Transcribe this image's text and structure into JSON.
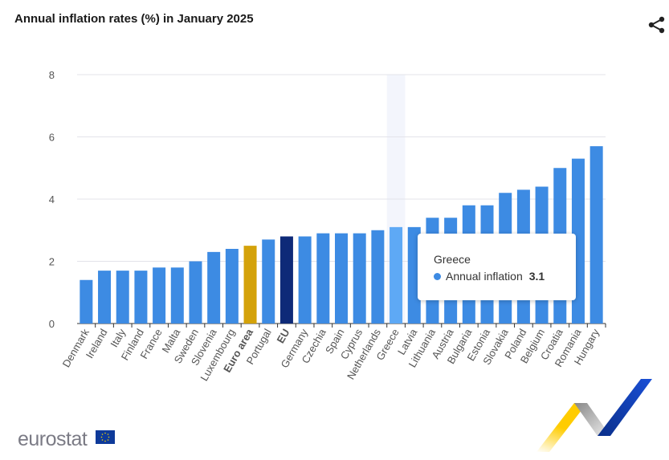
{
  "header": {
    "title": "Annual inflation rates (%) in January 2025",
    "share_icon": "share-icon"
  },
  "chart_data": {
    "type": "bar",
    "title": "Annual inflation rates (%) in January 2025",
    "xlabel": "",
    "ylabel": "",
    "ylim": [
      0,
      8
    ],
    "yticks": [
      0,
      2,
      4,
      6,
      8
    ],
    "grid": true,
    "categories": [
      "Denmark",
      "Ireland",
      "Italy",
      "Finland",
      "France",
      "Malta",
      "Sweden",
      "Slovenia",
      "Luxembourg",
      "Euro area",
      "Portugal",
      "EU",
      "Germany",
      "Czechia",
      "Spain",
      "Cyprus",
      "Netherlands",
      "Greece",
      "Latvia",
      "Lithuania",
      "Austria",
      "Bulgaria",
      "Estonia",
      "Slovakia",
      "Poland",
      "Belgium",
      "Croatia",
      "Romania",
      "Hungary"
    ],
    "series": [
      {
        "name": "Annual inflation",
        "values": [
          1.4,
          1.7,
          1.7,
          1.7,
          1.8,
          1.8,
          2.0,
          2.3,
          2.4,
          2.5,
          2.7,
          2.8,
          2.8,
          2.9,
          2.9,
          2.9,
          3.0,
          3.1,
          3.1,
          3.4,
          3.4,
          3.8,
          3.8,
          4.2,
          4.3,
          4.4,
          5.0,
          5.3,
          5.7
        ]
      }
    ],
    "bold_categories": [
      "Euro area",
      "EU"
    ],
    "colors": {
      "default": "#3d8be3",
      "euro_area": "#d4a20a",
      "eu": "#0e2a78",
      "hovered": "#5ea9f5"
    },
    "hovered_category": "Greece"
  },
  "tooltip": {
    "title": "Greece",
    "series": "Annual inflation",
    "value": "3.1"
  },
  "footer": {
    "logo": "eurostat"
  }
}
